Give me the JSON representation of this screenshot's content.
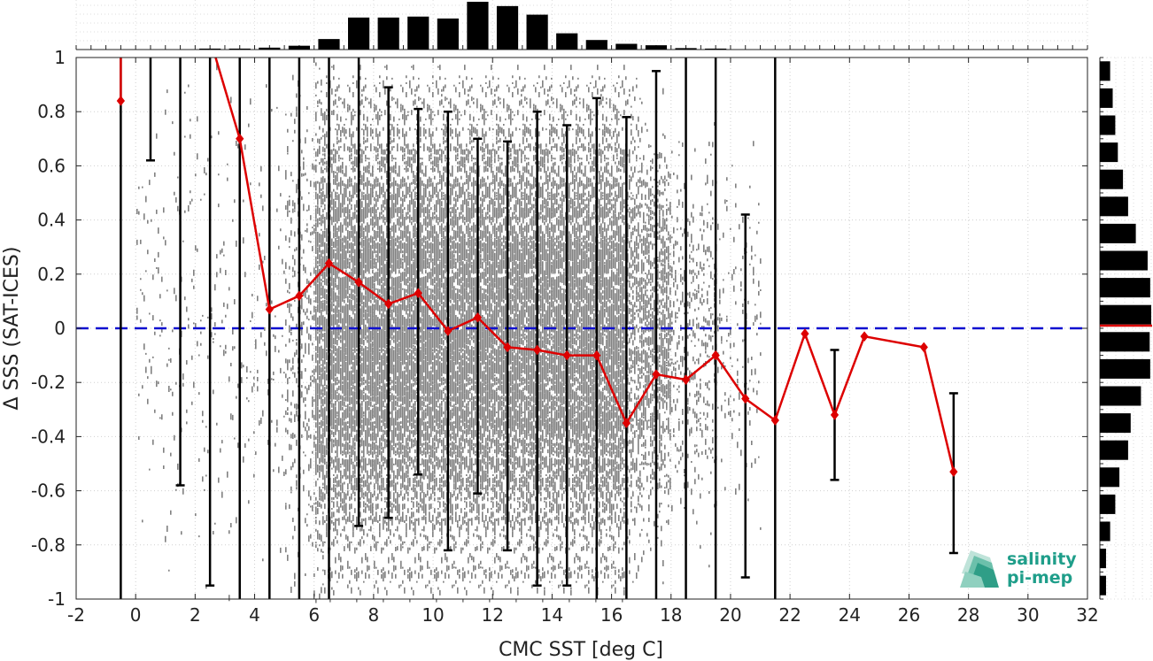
{
  "chart_data": {
    "type": "scatter",
    "xlabel": "CMC SST [deg C]",
    "ylabel": "Δ SSS (SAT-ICES)",
    "xlim": [
      -2,
      32
    ],
    "ylim": [
      -1,
      1
    ],
    "xticks": [
      -2,
      0,
      2,
      4,
      6,
      8,
      10,
      12,
      14,
      16,
      18,
      20,
      22,
      24,
      26,
      28,
      30,
      32
    ],
    "yticks": [
      -1,
      -0.8,
      -0.6,
      -0.4,
      -0.2,
      0,
      0.2,
      0.4,
      0.6,
      0.8,
      1
    ],
    "ytick_labels": [
      "-1",
      "-0.8",
      "-0.6",
      "-0.4",
      "-0.2",
      "0",
      "0.2",
      "0.4",
      "0.6",
      "0.8",
      "1"
    ],
    "grid": true,
    "zero_line": {
      "y": 0,
      "color": "#1010d0",
      "style": "dashed"
    },
    "mean_series": {
      "color": "#dd0000",
      "x": [
        -0.5,
        3.5,
        4.5,
        5.5,
        6.5,
        7.5,
        8.5,
        9.5,
        10.5,
        11.5,
        12.5,
        13.5,
        14.5,
        15.5,
        16.5,
        17.5,
        18.5,
        19.5,
        20.5,
        21.5,
        22.5,
        23.5,
        24.5,
        26.5,
        27.5
      ],
      "y": [
        0.84,
        0.7,
        0.07,
        0.12,
        0.24,
        0.17,
        0.09,
        0.13,
        -0.01,
        0.04,
        -0.07,
        -0.08,
        -0.1,
        -0.1,
        -0.35,
        -0.17,
        -0.19,
        -0.1,
        -0.26,
        -0.34,
        -0.02,
        -0.32,
        -0.03,
        -0.07,
        -0.53
      ]
    },
    "error_bars": [
      {
        "x": -0.5,
        "low": -1.0,
        "high": 1.0
      },
      {
        "x": 0.5,
        "low": 0.62,
        "high": 1.0
      },
      {
        "x": 1.5,
        "low": -0.58,
        "high": 1.0
      },
      {
        "x": 2.5,
        "low": -0.95,
        "high": 1.0
      },
      {
        "x": 3.5,
        "low": -1.0,
        "high": 1.0
      },
      {
        "x": 4.5,
        "low": -1.0,
        "high": 1.0
      },
      {
        "x": 5.5,
        "low": -1.0,
        "high": 1.0
      },
      {
        "x": 6.5,
        "low": -1.0,
        "high": 1.0
      },
      {
        "x": 7.5,
        "low": -0.73,
        "high": 1.0
      },
      {
        "x": 8.5,
        "low": -0.7,
        "high": 0.89
      },
      {
        "x": 9.5,
        "low": -0.54,
        "high": 0.81
      },
      {
        "x": 10.5,
        "low": -0.82,
        "high": 0.8
      },
      {
        "x": 11.5,
        "low": -0.61,
        "high": 0.7
      },
      {
        "x": 12.5,
        "low": -0.82,
        "high": 0.69
      },
      {
        "x": 13.5,
        "low": -0.95,
        "high": 0.8
      },
      {
        "x": 14.5,
        "low": -0.95,
        "high": 0.75
      },
      {
        "x": 15.5,
        "low": -1.0,
        "high": 0.85
      },
      {
        "x": 16.5,
        "low": -1.0,
        "high": 0.78
      },
      {
        "x": 17.5,
        "low": -1.0,
        "high": 0.95
      },
      {
        "x": 18.5,
        "low": -1.0,
        "high": 1.0
      },
      {
        "x": 19.5,
        "low": -1.0,
        "high": 1.0
      },
      {
        "x": 20.5,
        "low": -0.92,
        "high": 0.42
      },
      {
        "x": 21.5,
        "low": -1.0,
        "high": 1.0
      },
      {
        "x": 23.5,
        "low": -0.56,
        "high": -0.08
      },
      {
        "x": 27.5,
        "low": -0.83,
        "high": -0.24
      }
    ],
    "top_histogram": {
      "bin_centers": [
        2.5,
        3.5,
        4.5,
        5.5,
        6.5,
        7.5,
        8.5,
        9.5,
        10.5,
        11.5,
        12.5,
        13.5,
        14.5,
        15.5,
        16.5,
        17.5,
        18.5,
        19.5
      ],
      "relative_counts": [
        0.02,
        0.02,
        0.04,
        0.08,
        0.22,
        0.67,
        0.67,
        0.69,
        0.65,
        1.0,
        0.91,
        0.73,
        0.34,
        0.2,
        0.12,
        0.09,
        0.03,
        0.02
      ]
    },
    "right_histogram": {
      "bin_centers": [
        -0.95,
        -0.85,
        -0.75,
        -0.65,
        -0.55,
        -0.45,
        -0.35,
        -0.25,
        -0.15,
        -0.05,
        0.05,
        0.15,
        0.25,
        0.35,
        0.45,
        0.55,
        0.65,
        0.75,
        0.85,
        0.95
      ],
      "relative_counts": [
        0.12,
        0.12,
        0.2,
        0.3,
        0.38,
        0.55,
        0.6,
        0.8,
        0.98,
        0.97,
        1.0,
        0.98,
        0.93,
        0.7,
        0.55,
        0.45,
        0.35,
        0.3,
        0.25,
        0.2
      ],
      "median_line": {
        "y": 0.01,
        "color": "#dd0000"
      }
    },
    "scatter_color": "#808080"
  },
  "logo": {
    "line1": "salinity",
    "line2": "pi-mep",
    "color": "#1f9e8a"
  }
}
